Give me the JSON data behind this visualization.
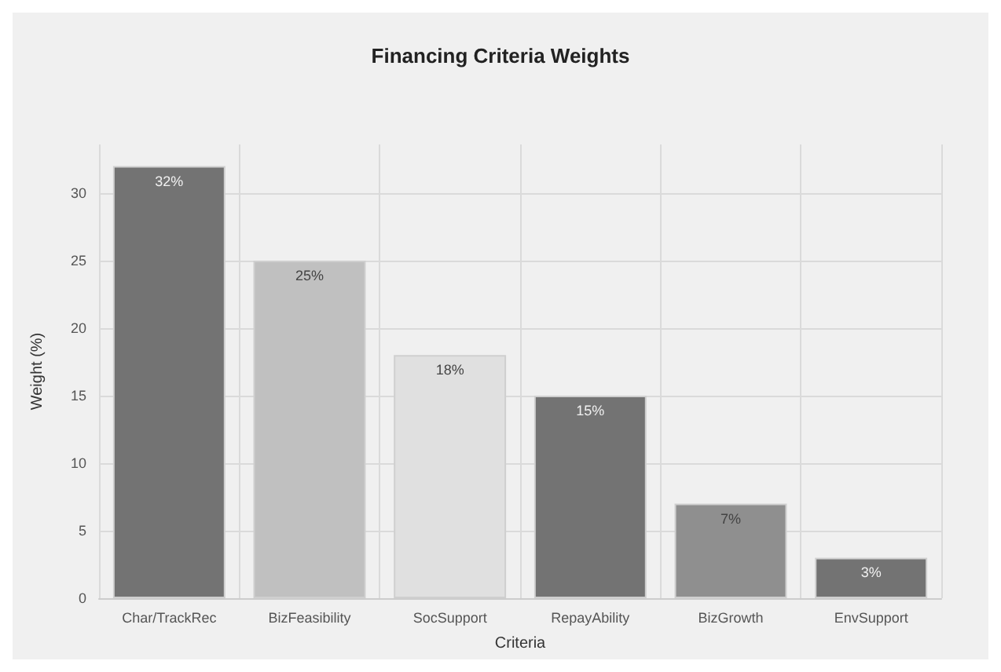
{
  "chart_data": {
    "type": "bar",
    "title": "Financing Criteria Weights",
    "xlabel": "Criteria",
    "ylabel": "Weight (%)",
    "categories": [
      "Char/TrackRec",
      "BizFeasibility",
      "SocSupport",
      "RepayAbility",
      "BizGrowth",
      "EnvSupport"
    ],
    "values": [
      32,
      25,
      18,
      15,
      7,
      3
    ],
    "colors": [
      "#737373",
      "#c0c0c0",
      "#e0e0e0",
      "#737373",
      "#8f8f8f",
      "#737373"
    ],
    "value_labels": [
      "32%",
      "25%",
      "18%",
      "15%",
      "7%",
      "3%"
    ],
    "ylim": [
      0,
      33.6
    ],
    "yticks": [
      0,
      5,
      10,
      15,
      20,
      25,
      30
    ],
    "grid": true
  }
}
